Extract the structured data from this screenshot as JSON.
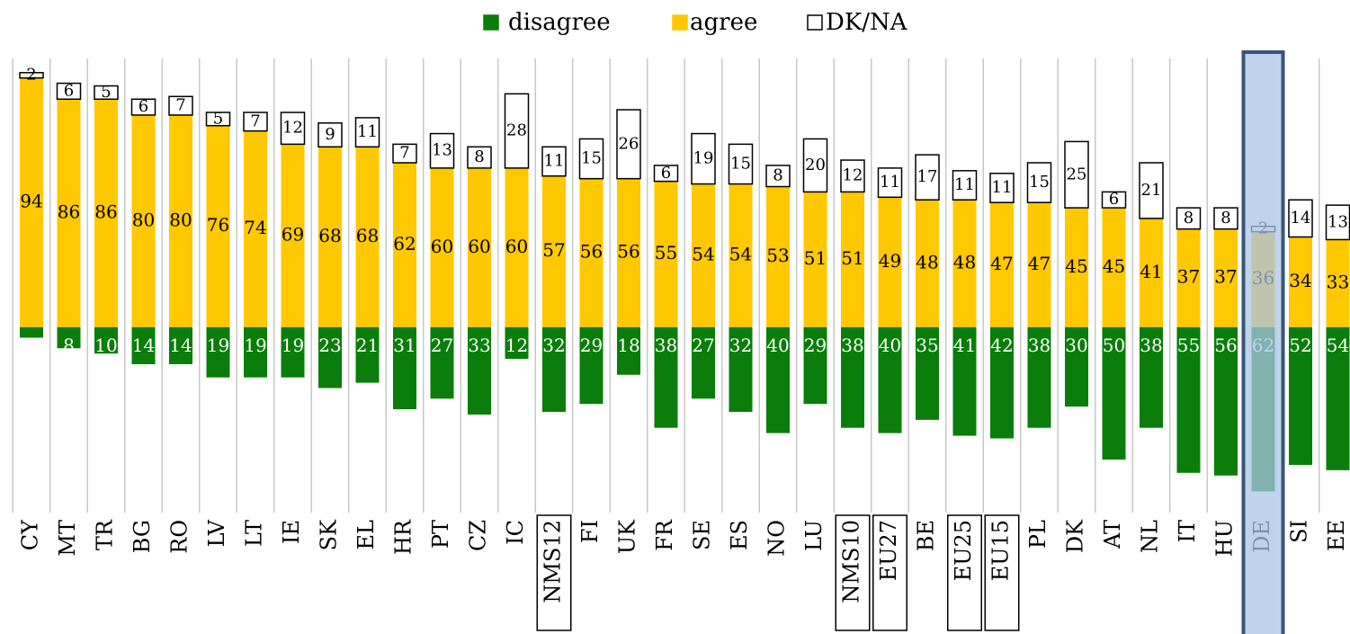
{
  "chart_data": {
    "type": "diverging_stacked_bar",
    "categories": [
      "CY",
      "MT",
      "TR",
      "BG",
      "RO",
      "LV",
      "LT",
      "IE",
      "SK",
      "EL",
      "HR",
      "PT",
      "CZ",
      "IC",
      "NMS12",
      "FI",
      "UK",
      "FR",
      "SE",
      "ES",
      "NO",
      "LU",
      "NMS10",
      "EU27",
      "BE",
      "EU25",
      "EU15",
      "PL",
      "DK",
      "AT",
      "NL",
      "IT",
      "HU",
      "DE",
      "SI",
      "EE"
    ],
    "series": [
      {
        "name": "disagree",
        "color": "#0a7d0a",
        "direction": "down",
        "values": [
          4,
          8,
          10,
          14,
          14,
          19,
          19,
          19,
          23,
          21,
          31,
          27,
          33,
          12,
          32,
          29,
          18,
          38,
          27,
          32,
          40,
          29,
          38,
          40,
          35,
          41,
          42,
          38,
          30,
          50,
          38,
          55,
          56,
          62,
          52,
          54
        ]
      },
      {
        "name": "agree",
        "color": "#ffc800",
        "direction": "up",
        "values": [
          94,
          86,
          86,
          80,
          80,
          76,
          74,
          69,
          68,
          68,
          62,
          60,
          60,
          60,
          57,
          56,
          56,
          55,
          54,
          54,
          53,
          51,
          51,
          49,
          48,
          48,
          47,
          47,
          45,
          45,
          41,
          37,
          37,
          36,
          34,
          33
        ]
      },
      {
        "name": "DK/NA",
        "color": "#ffffff",
        "direction": "up",
        "values": [
          2,
          6,
          5,
          6,
          7,
          5,
          7,
          12,
          9,
          11,
          7,
          13,
          8,
          28,
          11,
          15,
          26,
          6,
          19,
          15,
          8,
          20,
          12,
          11,
          17,
          11,
          11,
          15,
          25,
          6,
          21,
          8,
          8,
          2,
          14,
          13
        ]
      }
    ],
    "ylim": [
      -70,
      100
    ],
    "legend": "top"
  }
}
